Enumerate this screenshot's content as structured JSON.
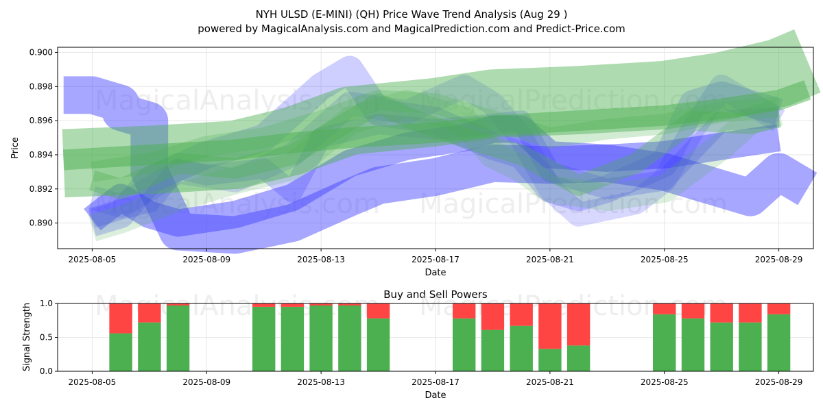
{
  "title": "NYH ULSD (E-MINI) (QH) Price Wave Trend Analysis (Aug 29 )",
  "subtitle": "powered by MagicalAnalysis.com and MagicalPrediction.com and Predict-Price.com",
  "watermarks": [
    "MagicalAnalysis.com",
    "MagicalPrediction.com"
  ],
  "colors": {
    "buy": "#4caf50",
    "sell": "#ff4444",
    "bull_band": "#4caf50",
    "bear_band": "#3c3cff"
  },
  "chart_data": [
    {
      "type": "line",
      "title": "",
      "xlabel": "Date",
      "ylabel": "Price",
      "grid": true,
      "x_ticks": [
        "2025-08-05",
        "2025-08-09",
        "2025-08-13",
        "2025-08-17",
        "2025-08-21",
        "2025-08-25",
        "2025-08-29"
      ],
      "y_ticks": [
        "0.890",
        "0.892",
        "0.894",
        "0.896",
        "0.898",
        "0.900"
      ],
      "ylim": [
        0.8885,
        0.9003
      ],
      "xlim": [
        "2025-08-03 19:00",
        "2025-08-30 05:00"
      ],
      "series": [
        {
          "color": "bear",
          "alpha": 0.45,
          "width": 0.0022,
          "points": [
            [
              "2025-08-04",
              0.8975
            ],
            [
              "2025-08-05",
              0.8975
            ],
            [
              "2025-08-06",
              0.897
            ],
            [
              "2025-08-06",
              0.8965
            ],
            [
              "2025-08-07",
              0.896
            ],
            [
              "2025-08-07",
              0.893
            ],
            [
              "2025-08-08",
              0.8895
            ],
            [
              "2025-08-10",
              0.8893
            ],
            [
              "2025-08-12",
              0.89
            ],
            [
              "2025-08-14",
              0.8915
            ],
            [
              "2025-08-15",
              0.8922
            ],
            [
              "2025-08-17",
              0.8927
            ],
            [
              "2025-08-19",
              0.8935
            ],
            [
              "2025-08-21",
              0.8934
            ],
            [
              "2025-08-23",
              0.8935
            ],
            [
              "2025-08-25",
              0.893
            ],
            [
              "2025-08-27",
              0.892
            ],
            [
              "2025-08-28",
              0.8915
            ],
            [
              "2025-08-29",
              0.893
            ],
            [
              "2025-08-30",
              0.892
            ]
          ]
        },
        {
          "color": "bear",
          "alpha": 0.45,
          "width": 0.0016,
          "points": [
            [
              "2025-08-05",
              0.8902
            ],
            [
              "2025-08-06",
              0.8915
            ],
            [
              "2025-08-07",
              0.8905
            ],
            [
              "2025-08-08",
              0.89
            ],
            [
              "2025-08-10",
              0.8905
            ],
            [
              "2025-08-12",
              0.8915
            ],
            [
              "2025-08-14",
              0.8935
            ],
            [
              "2025-08-16",
              0.8945
            ],
            [
              "2025-08-18",
              0.895
            ],
            [
              "2025-08-19",
              0.8955
            ],
            [
              "2025-08-20",
              0.8955
            ],
            [
              "2025-08-21",
              0.894
            ],
            [
              "2025-08-23",
              0.8938
            ],
            [
              "2025-08-25",
              0.894
            ],
            [
              "2025-08-27",
              0.8945
            ],
            [
              "2025-08-29",
              0.895
            ]
          ]
        },
        {
          "color": "bear",
          "alpha": 0.25,
          "width": 0.0016,
          "points": [
            [
              "2025-08-05",
              0.89
            ],
            [
              "2025-08-06",
              0.8905
            ],
            [
              "2025-08-07",
              0.8925
            ],
            [
              "2025-08-09",
              0.894
            ],
            [
              "2025-08-11",
              0.895
            ],
            [
              "2025-08-13",
              0.898
            ],
            [
              "2025-08-14",
              0.899
            ],
            [
              "2025-08-15",
              0.8965
            ],
            [
              "2025-08-17",
              0.896
            ],
            [
              "2025-08-19",
              0.8945
            ],
            [
              "2025-08-20",
              0.894
            ],
            [
              "2025-08-21",
              0.892
            ],
            [
              "2025-08-22",
              0.8915
            ],
            [
              "2025-08-23",
              0.892
            ],
            [
              "2025-08-25",
              0.8935
            ],
            [
              "2025-08-26",
              0.897
            ],
            [
              "2025-08-27",
              0.8975
            ],
            [
              "2025-08-29",
              0.8965
            ]
          ]
        },
        {
          "color": "bear",
          "alpha": 0.2,
          "width": 0.0014,
          "points": [
            [
              "2025-08-05",
              0.8915
            ],
            [
              "2025-08-06",
              0.891
            ],
            [
              "2025-08-08",
              0.893
            ],
            [
              "2025-08-10",
              0.8925
            ],
            [
              "2025-08-12",
              0.894
            ],
            [
              "2025-08-14",
              0.897
            ],
            [
              "2025-08-16",
              0.8965
            ],
            [
              "2025-08-18",
              0.898
            ],
            [
              "2025-08-19",
              0.897
            ],
            [
              "2025-08-20",
              0.895
            ],
            [
              "2025-08-21",
              0.892
            ],
            [
              "2025-08-22",
              0.8905
            ],
            [
              "2025-08-24",
              0.8912
            ],
            [
              "2025-08-25",
              0.8925
            ],
            [
              "2025-08-26",
              0.8955
            ],
            [
              "2025-08-27",
              0.898
            ],
            [
              "2025-08-29",
              0.896
            ]
          ]
        },
        {
          "color": "bear",
          "alpha": 0.25,
          "width": 0.0012,
          "points": [
            [
              "2025-08-05",
              0.8903
            ],
            [
              "2025-08-06",
              0.8908
            ],
            [
              "2025-08-07",
              0.8912
            ],
            [
              "2025-08-08",
              0.8932
            ],
            [
              "2025-08-09",
              0.8928
            ],
            [
              "2025-08-11",
              0.8932
            ],
            [
              "2025-08-12",
              0.8918
            ],
            [
              "2025-08-13",
              0.895
            ],
            [
              "2025-08-15",
              0.8958
            ],
            [
              "2025-08-17",
              0.8955
            ],
            [
              "2025-08-19",
              0.8958
            ],
            [
              "2025-08-20",
              0.896
            ],
            [
              "2025-08-21",
              0.893
            ],
            [
              "2025-08-23",
              0.892
            ],
            [
              "2025-08-25",
              0.8925
            ],
            [
              "2025-08-27",
              0.896
            ],
            [
              "2025-08-29",
              0.8962
            ]
          ]
        },
        {
          "color": "bull",
          "alpha": 0.45,
          "width": 0.004,
          "points": [
            [
              "2025-08-04",
              0.8935
            ],
            [
              "2025-08-07",
              0.8937
            ],
            [
              "2025-08-10",
              0.894
            ],
            [
              "2025-08-12",
              0.8948
            ],
            [
              "2025-08-14",
              0.896
            ],
            [
              "2025-08-17",
              0.8965
            ],
            [
              "2025-08-19",
              0.897
            ],
            [
              "2025-08-22",
              0.8972
            ],
            [
              "2025-08-25",
              0.8975
            ],
            [
              "2025-08-27",
              0.898
            ],
            [
              "2025-08-29",
              0.8988
            ],
            [
              "2025-08-30",
              0.8995
            ]
          ]
        },
        {
          "color": "bull",
          "alpha": 0.5,
          "width": 0.0012,
          "points": [
            [
              "2025-08-04",
              0.8937
            ],
            [
              "2025-08-07",
              0.894
            ],
            [
              "2025-08-10",
              0.8943
            ],
            [
              "2025-08-12",
              0.8947
            ],
            [
              "2025-08-14",
              0.895
            ],
            [
              "2025-08-17",
              0.8953
            ],
            [
              "2025-08-19",
              0.8957
            ],
            [
              "2025-08-22",
              0.896
            ],
            [
              "2025-08-25",
              0.8963
            ],
            [
              "2025-08-27",
              0.8967
            ],
            [
              "2025-08-29",
              0.8972
            ],
            [
              "2025-08-30",
              0.8978
            ]
          ]
        },
        {
          "color": "bull",
          "alpha": 0.35,
          "width": 0.0012,
          "points": [
            [
              "2025-08-05",
              0.8925
            ],
            [
              "2025-08-06",
              0.892
            ],
            [
              "2025-08-08",
              0.8935
            ],
            [
              "2025-08-10",
              0.8932
            ],
            [
              "2025-08-12",
              0.894
            ],
            [
              "2025-08-14",
              0.896
            ],
            [
              "2025-08-15",
              0.897
            ],
            [
              "2025-08-16",
              0.8962
            ],
            [
              "2025-08-18",
              0.895
            ],
            [
              "2025-08-20",
              0.894
            ],
            [
              "2025-08-22",
              0.8922
            ],
            [
              "2025-08-24",
              0.8935
            ],
            [
              "2025-08-26",
              0.896
            ],
            [
              "2025-08-28",
              0.8958
            ],
            [
              "2025-08-29",
              0.8962
            ]
          ]
        },
        {
          "color": "bull",
          "alpha": 0.2,
          "width": 0.0016,
          "points": [
            [
              "2025-08-05",
              0.8897
            ],
            [
              "2025-08-06",
              0.8902
            ],
            [
              "2025-08-08",
              0.8915
            ],
            [
              "2025-08-10",
              0.8925
            ],
            [
              "2025-08-12",
              0.8933
            ],
            [
              "2025-08-14",
              0.896
            ],
            [
              "2025-08-16",
              0.897
            ],
            [
              "2025-08-18",
              0.896
            ],
            [
              "2025-08-19",
              0.894
            ],
            [
              "2025-08-20",
              0.8932
            ],
            [
              "2025-08-21",
              0.892
            ],
            [
              "2025-08-23",
              0.8915
            ],
            [
              "2025-08-25",
              0.892
            ],
            [
              "2025-08-27",
              0.8945
            ],
            [
              "2025-08-28",
              0.896
            ],
            [
              "2025-08-29",
              0.8965
            ]
          ]
        },
        {
          "color": "bull",
          "alpha": 0.25,
          "width": 0.0012,
          "points": [
            [
              "2025-08-05",
              0.893
            ],
            [
              "2025-08-07",
              0.8935
            ],
            [
              "2025-08-09",
              0.8945
            ],
            [
              "2025-08-11",
              0.895
            ],
            [
              "2025-08-13",
              0.896
            ],
            [
              "2025-08-15",
              0.8972
            ],
            [
              "2025-08-17",
              0.897
            ],
            [
              "2025-08-19",
              0.896
            ],
            [
              "2025-08-21",
              0.895
            ],
            [
              "2025-08-23",
              0.8955
            ],
            [
              "2025-08-25",
              0.8958
            ],
            [
              "2025-08-27",
              0.8965
            ],
            [
              "2025-08-29",
              0.8968
            ]
          ]
        }
      ]
    },
    {
      "type": "bar",
      "title": "Buy and Sell Powers",
      "xlabel": "Date",
      "ylabel": "Signal Strength",
      "grid": true,
      "x_ticks": [
        "2025-08-05",
        "2025-08-09",
        "2025-08-13",
        "2025-08-17",
        "2025-08-21",
        "2025-08-25",
        "2025-08-29"
      ],
      "y_ticks": [
        "0.0",
        "0.5",
        "1.0"
      ],
      "ylim": [
        0,
        1
      ],
      "categories": [
        "2025-08-06",
        "2025-08-07",
        "2025-08-08",
        "2025-08-11",
        "2025-08-12",
        "2025-08-13",
        "2025-08-14",
        "2025-08-15",
        "2025-08-18",
        "2025-08-19",
        "2025-08-20",
        "2025-08-21",
        "2025-08-22",
        "2025-08-25",
        "2025-08-26",
        "2025-08-27",
        "2025-08-28",
        "2025-08-29"
      ],
      "series": [
        {
          "name": "Buy",
          "values": [
            0.56,
            0.72,
            0.97,
            0.95,
            0.95,
            0.97,
            0.97,
            0.78,
            0.78,
            0.61,
            0.67,
            0.33,
            0.38,
            0.84,
            0.78,
            0.72,
            0.72,
            0.84
          ]
        },
        {
          "name": "Sell",
          "values": [
            0.44,
            0.28,
            0.03,
            0.05,
            0.05,
            0.03,
            0.03,
            0.22,
            0.22,
            0.39,
            0.33,
            0.67,
            0.62,
            0.16,
            0.22,
            0.28,
            0.28,
            0.16
          ]
        }
      ]
    }
  ]
}
